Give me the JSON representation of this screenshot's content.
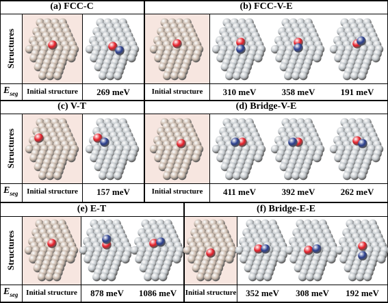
{
  "row_label": "Structures",
  "eseg_main": "E",
  "eseg_sub": "seg",
  "panels": {
    "a": {
      "title": "(a) FCC-C",
      "captions": [
        "Initial structure",
        "269 meV"
      ]
    },
    "b": {
      "title": "(b) FCC-V-E",
      "captions": [
        "Initial structure",
        "310 meV",
        "358 meV",
        "191 meV"
      ]
    },
    "c": {
      "title": "(c) V-T",
      "captions": [
        "Initial structure",
        "157  meV"
      ]
    },
    "d": {
      "title": "(d) Bridge-V-E",
      "captions": [
        "Initial structure",
        "411 meV",
        "392 meV",
        "262 meV"
      ]
    },
    "e": {
      "title": "(e) E-T",
      "captions": [
        "Initial structure",
        "878  meV",
        "1086  meV"
      ]
    },
    "f": {
      "title": "(f) Bridge-E-E",
      "captions": [
        "Initial structure",
        "352  meV",
        "308  meV",
        "192  meV"
      ]
    }
  },
  "colors": {
    "initial_atom": "#c9b9ac",
    "relaxed_atom": "#c3c8cc",
    "red_atom": "#e8202a",
    "blue_atom": "#2b3f8f",
    "initial_bg": "#f7e6e0"
  }
}
